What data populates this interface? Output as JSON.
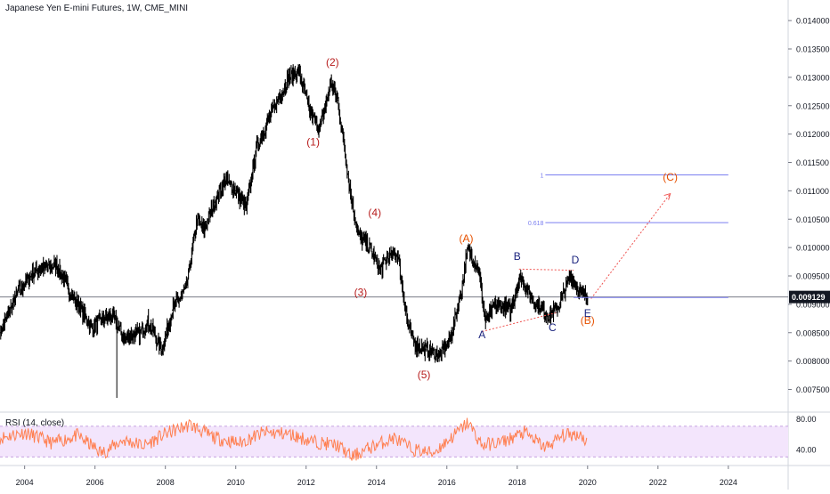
{
  "title": "Japanese Yen E-mini Futures, 1W, CME_MINI",
  "colors": {
    "candle": "#000000",
    "wave": "#b71c1c",
    "abc": "#e65100",
    "triangle": "#1a237e",
    "fib": "#7b7ff0",
    "trend_dotted": "#ef5350",
    "rsi_line": "#ff7f50",
    "rsi_band": "#f3e5fc",
    "price_line": "#787b86"
  },
  "price_axis": {
    "ticks": [
      "0.014000",
      "0.013500",
      "0.013000",
      "0.012500",
      "0.012000",
      "0.011500",
      "0.011000",
      "0.010500",
      "0.010000",
      "0.009500",
      "0.009000",
      "0.008500",
      "0.008000",
      "0.007500"
    ],
    "current_price": "0.009129"
  },
  "time_axis": {
    "ticks": [
      "2004",
      "2006",
      "2008",
      "2010",
      "2012",
      "2014",
      "2016",
      "2018",
      "2020",
      "2022",
      "2024"
    ]
  },
  "rsi": {
    "label": "RSI (14, close)",
    "ticks": [
      "80.00",
      "40.00"
    ]
  },
  "fib_levels": [
    {
      "label": "1",
      "price": 0.01128
    },
    {
      "label": "0.618",
      "price": 0.01044
    }
  ],
  "chart_data": {
    "type": "line",
    "title": "Japanese Yen E-mini Futures, 1W, CME_MINI",
    "xlabel": "",
    "ylabel": "",
    "ylim": [
      0.0071,
      0.0143
    ],
    "xlim": [
      2003.3,
      2025.7
    ],
    "grid": false,
    "series": [
      {
        "name": "",
        "x": [
          2003.3,
          2003.8,
          2004.3,
          2004.9,
          2005.4,
          2005.9,
          2006.4,
          2006.6,
          2006.8,
          2007.3,
          2007.5,
          2007.9,
          2008.2,
          2008.6,
          2008.9,
          2009.1,
          2009.4,
          2009.7,
          2010.0,
          2010.3,
          2010.6,
          2010.9,
          2011.2,
          2011.5,
          2011.8,
          2012.1,
          2012.4,
          2012.7,
          2012.9,
          2013.3,
          2013.5,
          2013.8,
          2014.1,
          2014.3,
          2014.6,
          2014.9,
          2015.1,
          2015.4,
          2015.8,
          2016.1,
          2016.4,
          2016.6,
          2016.9,
          2017.1,
          2017.4,
          2017.8,
          2018.1,
          2018.4,
          2018.9,
          2019.2,
          2019.5,
          2019.8,
          2020.0
        ],
        "values": [
          0.0085,
          0.0092,
          0.0096,
          0.0097,
          0.0091,
          0.0086,
          0.0088,
          0.0087,
          0.0084,
          0.0085,
          0.0087,
          0.0082,
          0.0089,
          0.0093,
          0.0105,
          0.0103,
          0.0108,
          0.0112,
          0.011,
          0.0107,
          0.0118,
          0.0122,
          0.0126,
          0.013,
          0.0131,
          0.0124,
          0.0121,
          0.0129,
          0.0126,
          0.0108,
          0.0102,
          0.01,
          0.0096,
          0.0098,
          0.0099,
          0.0086,
          0.0083,
          0.0082,
          0.0081,
          0.0084,
          0.0092,
          0.01,
          0.0096,
          0.0087,
          0.009,
          0.0089,
          0.0095,
          0.0091,
          0.0088,
          0.009,
          0.0095,
          0.0092,
          0.0091
        ]
      }
    ],
    "rsi_series": {
      "name": "RSI (14, close)",
      "x": [
        2003.3,
        2004.0,
        2004.8,
        2005.5,
        2006.2,
        2006.8,
        2007.4,
        2008.0,
        2008.7,
        2009.4,
        2010.1,
        2010.8,
        2011.5,
        2012.2,
        2012.9,
        2013.3,
        2013.8,
        2014.5,
        2015.0,
        2015.6,
        2016.2,
        2016.6,
        2017.0,
        2017.6,
        2018.2,
        2018.8,
        2019.3,
        2019.8,
        2020.0
      ],
      "values": [
        55,
        62,
        48,
        58,
        35,
        52,
        45,
        60,
        72,
        55,
        48,
        62,
        60,
        50,
        45,
        30,
        42,
        55,
        40,
        35,
        58,
        75,
        45,
        50,
        62,
        42,
        58,
        60,
        48
      ],
      "ylim": [
        20,
        85
      ],
      "band": [
        30,
        70
      ]
    },
    "annotations": {
      "wave_labels": [
        {
          "text": "(1)",
          "x": 2012.2,
          "y": 0.0118
        },
        {
          "text": "(2)",
          "x": 2012.75,
          "y": 0.0132
        },
        {
          "text": "(3)",
          "x": 2013.55,
          "y": 0.00915
        },
        {
          "text": "(4)",
          "x": 2013.95,
          "y": 0.01055
        },
        {
          "text": "(5)",
          "x": 2015.35,
          "y": 0.0077
        }
      ],
      "abc_labels": [
        {
          "text": "(A)",
          "x": 2016.55,
          "y": 0.0101
        },
        {
          "text": "(B)",
          "x": 2020.0,
          "y": 0.00865
        },
        {
          "text": "(C)",
          "x": 2022.35,
          "y": 0.01118
        }
      ],
      "triangle_labels": [
        {
          "text": "A",
          "x": 2017.0,
          "y": 0.0084
        },
        {
          "text": "B",
          "x": 2018.0,
          "y": 0.00978
        },
        {
          "text": "C",
          "x": 2019.0,
          "y": 0.00853
        },
        {
          "text": "D",
          "x": 2019.65,
          "y": 0.00972
        },
        {
          "text": "E",
          "x": 2020.0,
          "y": 0.00878
        }
      ]
    }
  }
}
